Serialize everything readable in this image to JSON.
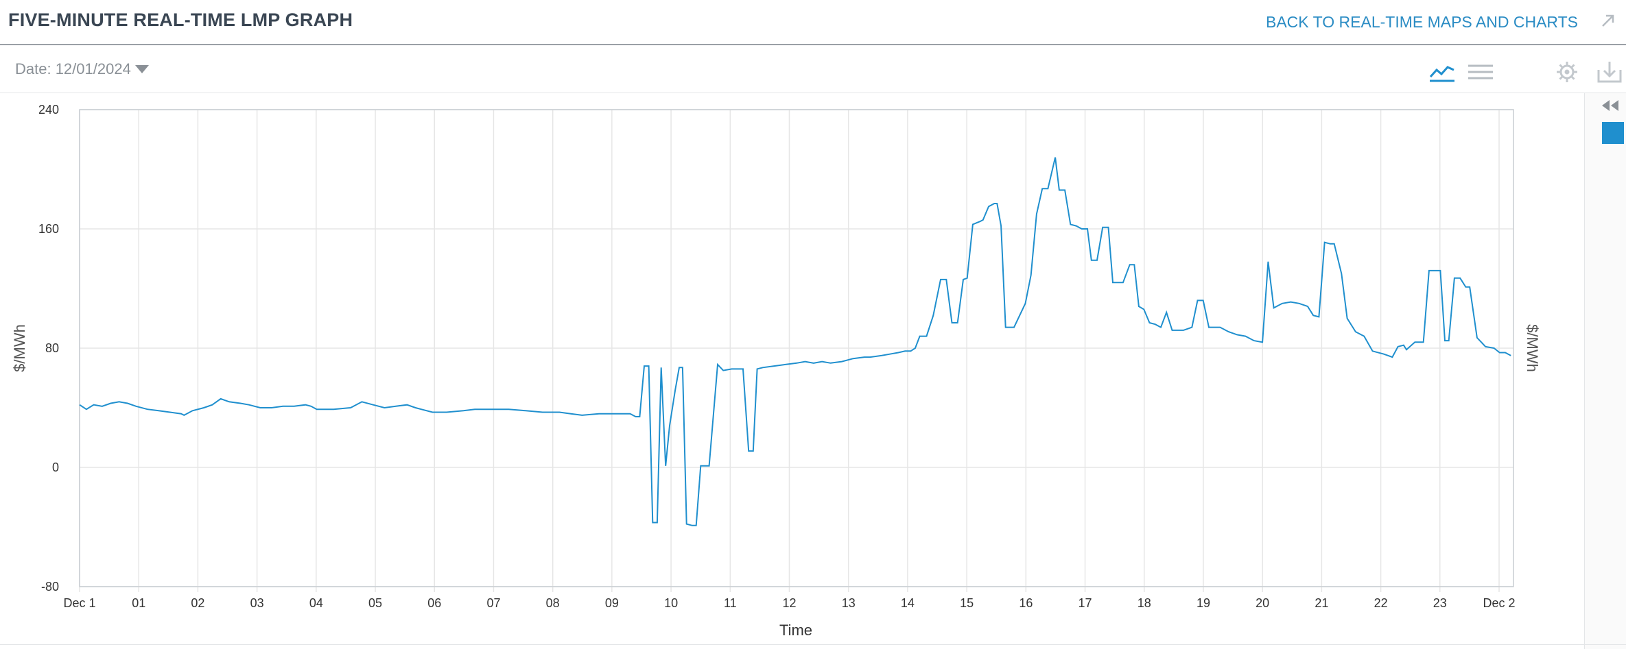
{
  "header": {
    "title": "FIVE-MINUTE REAL-TIME LMP GRAPH",
    "back_link": "BACK TO REAL-TIME MAPS AND CHARTS",
    "expand_icon": "arrow-up-right-icon"
  },
  "toolbar": {
    "date_label": "Date: 12/01/2024",
    "icons": [
      "line-chart-icon",
      "table-view-icon",
      "settings-icon",
      "download-icon"
    ]
  },
  "side_panel": {
    "collapse_icon": "double-chevron-left-icon",
    "swatch_color": "#1f8fce"
  },
  "colors": {
    "accent": "#2b8cc4",
    "series": "#1f8fce",
    "grid": "#e6e6e6",
    "axis": "#c8cdd2"
  },
  "chart_data": {
    "type": "line",
    "title": "",
    "xlabel": "Time",
    "ylabel_left": "$/MWh",
    "ylabel_right": "$/MWh",
    "ylim": [
      -80,
      240
    ],
    "xlim": [
      0,
      24.2
    ],
    "y_ticks": [
      "240",
      "160",
      "80",
      "0",
      "-80"
    ],
    "x_ticks": [
      "Dec 1",
      "01",
      "02",
      "03",
      "04",
      "05",
      "06",
      "07",
      "08",
      "09",
      "10",
      "11",
      "12",
      "13",
      "14",
      "15",
      "16",
      "17",
      "18",
      "19",
      "20",
      "21",
      "22",
      "23",
      "Dec 2"
    ],
    "grid": true,
    "series": [
      {
        "values": [
          [
            0.0,
            42
          ],
          [
            0.12,
            39
          ],
          [
            0.25,
            42
          ],
          [
            0.4,
            41
          ],
          [
            0.55,
            43
          ],
          [
            0.7,
            44
          ],
          [
            0.85,
            43
          ],
          [
            1.0,
            41
          ],
          [
            1.2,
            39
          ],
          [
            1.4,
            38
          ],
          [
            1.6,
            37
          ],
          [
            1.8,
            36
          ],
          [
            1.85,
            35
          ],
          [
            2.0,
            38
          ],
          [
            2.2,
            40
          ],
          [
            2.35,
            42
          ],
          [
            2.5,
            46
          ],
          [
            2.65,
            44
          ],
          [
            2.85,
            43
          ],
          [
            3.0,
            42
          ],
          [
            3.2,
            40
          ],
          [
            3.4,
            40
          ],
          [
            3.6,
            41
          ],
          [
            3.8,
            41
          ],
          [
            4.0,
            42
          ],
          [
            4.1,
            41
          ],
          [
            4.2,
            39
          ],
          [
            4.5,
            39
          ],
          [
            4.8,
            40
          ],
          [
            5.0,
            44
          ],
          [
            5.2,
            42
          ],
          [
            5.4,
            40
          ],
          [
            5.6,
            41
          ],
          [
            5.8,
            42
          ],
          [
            5.95,
            40
          ],
          [
            6.05,
            39
          ],
          [
            6.25,
            37
          ],
          [
            6.5,
            37
          ],
          [
            6.8,
            38
          ],
          [
            7.0,
            39
          ],
          [
            7.3,
            39
          ],
          [
            7.6,
            39
          ],
          [
            7.9,
            38
          ],
          [
            8.2,
            37
          ],
          [
            8.5,
            37
          ],
          [
            8.7,
            36
          ],
          [
            8.9,
            35
          ],
          [
            9.2,
            36
          ],
          [
            9.5,
            36
          ],
          [
            9.75,
            36
          ],
          [
            9.85,
            34
          ],
          [
            9.92,
            34
          ],
          [
            10.0,
            68
          ],
          [
            10.08,
            68
          ],
          [
            10.15,
            -37
          ],
          [
            10.23,
            -37
          ],
          [
            10.3,
            67
          ],
          [
            10.38,
            1
          ],
          [
            10.45,
            28
          ],
          [
            10.55,
            52
          ],
          [
            10.62,
            67
          ],
          [
            10.68,
            67
          ],
          [
            10.75,
            -38
          ],
          [
            10.85,
            -39
          ],
          [
            10.92,
            -39
          ],
          [
            11.0,
            1
          ],
          [
            11.15,
            1
          ],
          [
            11.3,
            69
          ],
          [
            11.4,
            65
          ],
          [
            11.55,
            66
          ],
          [
            11.75,
            66
          ],
          [
            11.85,
            11
          ],
          [
            11.93,
            11
          ],
          [
            12.0,
            66
          ],
          [
            12.1,
            67
          ],
          [
            12.3,
            68
          ],
          [
            12.5,
            69
          ],
          [
            12.7,
            70
          ],
          [
            12.85,
            71
          ],
          [
            13.0,
            70
          ],
          [
            13.15,
            71
          ],
          [
            13.3,
            70
          ],
          [
            13.5,
            71
          ],
          [
            13.7,
            73
          ],
          [
            13.9,
            74
          ],
          [
            14.0,
            74
          ],
          [
            14.2,
            75
          ],
          [
            14.35,
            76
          ],
          [
            14.5,
            77
          ],
          [
            14.62,
            78
          ],
          [
            14.72,
            78
          ],
          [
            14.8,
            80
          ],
          [
            14.88,
            88
          ],
          [
            15.0,
            88
          ],
          [
            15.12,
            102
          ],
          [
            15.25,
            126
          ],
          [
            15.35,
            126
          ],
          [
            15.45,
            97
          ],
          [
            15.55,
            97
          ],
          [
            15.65,
            126
          ],
          [
            15.72,
            127
          ],
          [
            15.82,
            163
          ],
          [
            15.95,
            165
          ],
          [
            16.0,
            166
          ],
          [
            16.1,
            175
          ],
          [
            16.2,
            177
          ],
          [
            16.25,
            177
          ],
          [
            16.32,
            162
          ],
          [
            16.4,
            94
          ],
          [
            16.55,
            94
          ],
          [
            16.75,
            110
          ],
          [
            16.85,
            129
          ],
          [
            16.95,
            170
          ],
          [
            17.05,
            187
          ],
          [
            17.15,
            187
          ],
          [
            17.28,
            208
          ],
          [
            17.35,
            186
          ],
          [
            17.45,
            186
          ],
          [
            17.55,
            163
          ],
          [
            17.65,
            162
          ],
          [
            17.75,
            160
          ],
          [
            17.85,
            160
          ],
          [
            17.92,
            139
          ],
          [
            18.02,
            139
          ],
          [
            18.12,
            161
          ],
          [
            18.22,
            161
          ],
          [
            18.3,
            124
          ],
          [
            18.48,
            124
          ],
          [
            18.6,
            136
          ],
          [
            18.68,
            136
          ],
          [
            18.76,
            108
          ],
          [
            18.85,
            106
          ],
          [
            18.95,
            97
          ],
          [
            19.05,
            96
          ],
          [
            19.15,
            94
          ],
          [
            19.25,
            104
          ],
          [
            19.35,
            92
          ],
          [
            19.55,
            92
          ],
          [
            19.7,
            94
          ],
          [
            19.8,
            112
          ],
          [
            19.9,
            112
          ],
          [
            20.0,
            94
          ],
          [
            20.2,
            94
          ],
          [
            20.35,
            91
          ],
          [
            20.5,
            89
          ],
          [
            20.65,
            88
          ],
          [
            20.8,
            85
          ],
          [
            20.95,
            84
          ],
          [
            21.05,
            138
          ],
          [
            21.15,
            107
          ],
          [
            21.3,
            110
          ],
          [
            21.45,
            111
          ],
          [
            21.6,
            110
          ],
          [
            21.75,
            108
          ],
          [
            21.85,
            102
          ],
          [
            21.95,
            101
          ],
          [
            22.05,
            151
          ],
          [
            22.15,
            150
          ],
          [
            22.22,
            150
          ],
          [
            22.35,
            130
          ],
          [
            22.45,
            100
          ],
          [
            22.6,
            91
          ],
          [
            22.75,
            88
          ],
          [
            22.9,
            78
          ],
          [
            23.1,
            76
          ],
          [
            23.25,
            74
          ],
          [
            23.35,
            81
          ],
          [
            23.45,
            82
          ],
          [
            23.5,
            79
          ],
          [
            23.65,
            84
          ],
          [
            23.8,
            84
          ],
          [
            23.9,
            132
          ],
          [
            24.0,
            132
          ],
          [
            24.1,
            132
          ],
          [
            24.18,
            85
          ],
          [
            24.25,
            85
          ],
          [
            24.35,
            127
          ],
          [
            24.45,
            127
          ],
          [
            24.55,
            121
          ],
          [
            24.62,
            121
          ],
          [
            24.75,
            87
          ],
          [
            24.9,
            81
          ],
          [
            25.05,
            80
          ],
          [
            25.15,
            77
          ],
          [
            25.25,
            77
          ],
          [
            25.35,
            75
          ]
        ]
      }
    ]
  }
}
